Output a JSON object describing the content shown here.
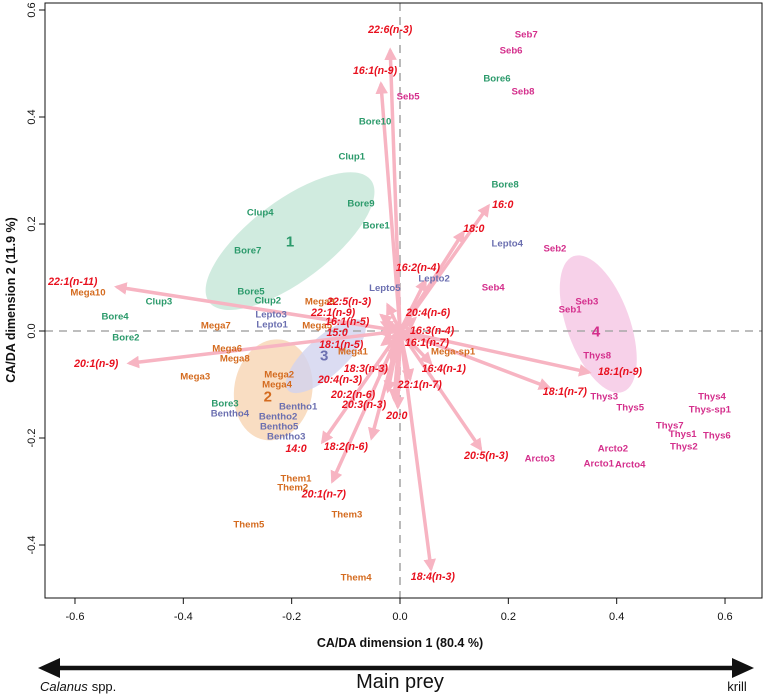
{
  "chart_data": {
    "type": "scatter",
    "title": "",
    "xlabel": "CA/DA dimension 1 (80.4 %)",
    "ylabel": "CA/DA dimension 2 (11.9 %)",
    "xlim": [
      -0.655,
      0.67
    ],
    "ylim": [
      -0.5,
      0.613
    ],
    "xticks": [
      -0.6,
      -0.4,
      -0.2,
      0,
      0.2,
      0.4,
      0.6
    ],
    "xtick_labels": [
      "-0.6",
      "-0.4",
      "-0.2",
      "0.0",
      "0.2",
      "0.4",
      "0.6"
    ],
    "yticks": [
      -0.4,
      -0.2,
      0,
      0.2,
      0.4,
      0.6
    ],
    "ytick_labels": [
      "-0.4",
      "-0.2",
      "0.0",
      "0.2",
      "0.4",
      "0.6"
    ],
    "reference_lines": {
      "x": 0,
      "y": 0,
      "style": "dashed",
      "color": "#a8a8a8"
    },
    "groups": [
      {
        "label": "1",
        "color": "#2b9a6b",
        "fill": "#c4e6d7",
        "centroid": [
          -0.203,
          0.166
        ],
        "ellipse": {
          "center": [
            -0.203,
            0.168
          ],
          "semi_axes": [
            0.187,
            0.075
          ],
          "rotation_deg": -37
        },
        "points": [
          {
            "label": "Clup1",
            "x": -0.089,
            "y": 0.325
          },
          {
            "label": "Bore10",
            "x": -0.046,
            "y": 0.391
          },
          {
            "label": "Bore6",
            "x": 0.179,
            "y": 0.471
          },
          {
            "label": "Bore8",
            "x": 0.194,
            "y": 0.273
          },
          {
            "label": "Clup4",
            "x": -0.258,
            "y": 0.221
          },
          {
            "label": "Bore9",
            "x": -0.072,
            "y": 0.237
          },
          {
            "label": "Bore1",
            "x": -0.044,
            "y": 0.196
          },
          {
            "label": "Bore7",
            "x": -0.281,
            "y": 0.15
          },
          {
            "label": "Bore5",
            "x": -0.275,
            "y": 0.073
          },
          {
            "label": "Clup2",
            "x": -0.244,
            "y": 0.056
          },
          {
            "label": "Clup3",
            "x": -0.445,
            "y": 0.054
          },
          {
            "label": "Bore4",
            "x": -0.526,
            "y": 0.026
          },
          {
            "label": "Bore2",
            "x": -0.506,
            "y": -0.013
          },
          {
            "label": "Bore3",
            "x": -0.323,
            "y": -0.136
          }
        ]
      },
      {
        "label": "2",
        "color": "#d46b1f",
        "fill": "#f8d5b3",
        "centroid": [
          -0.244,
          -0.123
        ],
        "ellipse": {
          "center": [
            -0.234,
            -0.11
          ],
          "semi_axes": [
            0.072,
            0.095
          ],
          "rotation_deg": 10
        },
        "points": [
          {
            "label": "Mega10",
            "x": -0.576,
            "y": 0.071
          },
          {
            "label": "Mega9",
            "x": -0.148,
            "y": 0.054
          },
          {
            "label": "Mega7",
            "x": -0.34,
            "y": 0.009
          },
          {
            "label": "Mega5",
            "x": -0.153,
            "y": 0.009
          },
          {
            "label": "Mega6",
            "x": -0.319,
            "y": -0.034
          },
          {
            "label": "Mega1",
            "x": -0.087,
            "y": -0.039
          },
          {
            "label": "Mega-sp1",
            "x": 0.098,
            "y": -0.039
          },
          {
            "label": "Mega8",
            "x": -0.305,
            "y": -0.052
          },
          {
            "label": "Mega2",
            "x": -0.223,
            "y": -0.082
          },
          {
            "label": "Mega3",
            "x": -0.378,
            "y": -0.086
          },
          {
            "label": "Mega4",
            "x": -0.227,
            "y": -0.101
          },
          {
            "label": "Them1",
            "x": -0.192,
            "y": -0.277
          },
          {
            "label": "Them2",
            "x": -0.198,
            "y": -0.293
          },
          {
            "label": "Them3",
            "x": -0.098,
            "y": -0.344
          },
          {
            "label": "Them5",
            "x": -0.279,
            "y": -0.363
          },
          {
            "label": "Them4",
            "x": -0.081,
            "y": -0.462
          }
        ]
      },
      {
        "label": "3",
        "color": "#6b6fb0",
        "fill": "#d2d3ef",
        "centroid": [
          -0.14,
          -0.047
        ],
        "ellipse": {
          "center": [
            -0.137,
            -0.047
          ],
          "semi_axes": [
            0.094,
            0.036
          ],
          "rotation_deg": -42
        },
        "points": [
          {
            "label": "Lepto4",
            "x": 0.198,
            "y": 0.163
          },
          {
            "label": "Lepto2",
            "x": 0.063,
            "y": 0.097
          },
          {
            "label": "Lepto5",
            "x": -0.028,
            "y": 0.079
          },
          {
            "label": "Lepto3",
            "x": -0.238,
            "y": 0.03
          },
          {
            "label": "Lepto1",
            "x": -0.236,
            "y": 0.011
          },
          {
            "label": "Bentho1",
            "x": -0.188,
            "y": -0.142
          },
          {
            "label": "Bentho4",
            "x": -0.314,
            "y": -0.155
          },
          {
            "label": "Bentho2",
            "x": -0.225,
            "y": -0.161
          },
          {
            "label": "Bentho5",
            "x": -0.223,
            "y": -0.179
          },
          {
            "label": "Bentho3",
            "x": -0.21,
            "y": -0.198
          }
        ]
      },
      {
        "label": "4",
        "color": "#d42f8c",
        "fill": "#f5c6e4",
        "centroid": [
          0.362,
          -0.002
        ],
        "ellipse": {
          "center": [
            0.366,
            0.013
          ],
          "semi_axes": [
            0.058,
            0.135
          ],
          "rotation_deg": -20
        },
        "points": [
          {
            "label": "Seb7",
            "x": 0.233,
            "y": 0.553
          },
          {
            "label": "Seb6",
            "x": 0.205,
            "y": 0.523
          },
          {
            "label": "Seb8",
            "x": 0.227,
            "y": 0.447
          },
          {
            "label": "Seb5",
            "x": 0.015,
            "y": 0.437
          },
          {
            "label": "Seb2",
            "x": 0.286,
            "y": 0.153
          },
          {
            "label": "Seb4",
            "x": 0.172,
            "y": 0.08
          },
          {
            "label": "Seb3",
            "x": 0.345,
            "y": 0.054
          },
          {
            "label": "Seb1",
            "x": 0.314,
            "y": 0.039
          },
          {
            "label": "Thys8",
            "x": 0.364,
            "y": -0.047
          },
          {
            "label": "Thys3",
            "x": 0.377,
            "y": -0.123
          },
          {
            "label": "Thys4",
            "x": 0.576,
            "y": -0.123
          },
          {
            "label": "Thys5",
            "x": 0.425,
            "y": -0.144
          },
          {
            "label": "Thys-sp1",
            "x": 0.572,
            "y": -0.148
          },
          {
            "label": "Thys7",
            "x": 0.498,
            "y": -0.178
          },
          {
            "label": "Thys1",
            "x": 0.522,
            "y": -0.193
          },
          {
            "label": "Thys6",
            "x": 0.585,
            "y": -0.196
          },
          {
            "label": "Thys2",
            "x": 0.524,
            "y": -0.217
          },
          {
            "label": "Arcto2",
            "x": 0.393,
            "y": -0.221
          },
          {
            "label": "Arcto3",
            "x": 0.258,
            "y": -0.239
          },
          {
            "label": "Arcto1",
            "x": 0.367,
            "y": -0.249
          },
          {
            "label": "Arcto4",
            "x": 0.425,
            "y": -0.25
          }
        ]
      }
    ],
    "vectors": {
      "color": "#f7b4c2",
      "label_color": "#e8101e",
      "items": [
        {
          "label": "22:6(n-3)",
          "x": -0.018,
          "y": 0.523
        },
        {
          "label": "16:1(n-9)",
          "x": -0.035,
          "y": 0.46
        },
        {
          "label": "16:0",
          "x": 0.162,
          "y": 0.232
        },
        {
          "label": "18:0",
          "x": 0.116,
          "y": 0.183
        },
        {
          "label": "16:2(n-4)",
          "x": 0.046,
          "y": 0.092
        },
        {
          "label": "22:1(n-11)",
          "x": -0.521,
          "y": 0.082
        },
        {
          "label": "20:1(n-9)",
          "x": -0.498,
          "y": -0.06
        },
        {
          "label": "22:5(n-3)",
          "x": -0.022,
          "y": 0.047
        },
        {
          "label": "22:1(n-9)",
          "x": -0.033,
          "y": 0.028
        },
        {
          "label": "16:1(n-5)",
          "x": -0.031,
          "y": 0.015
        },
        {
          "label": "20:4(n-6)",
          "x": 0.026,
          "y": 0.022
        },
        {
          "label": "15:0",
          "x": -0.033,
          "y": -0.004
        },
        {
          "label": "16:3(n-4)",
          "x": 0.026,
          "y": -0.002
        },
        {
          "label": "16:1(n-7)",
          "x": 0.022,
          "y": -0.017
        },
        {
          "label": "18:1(n-5)",
          "x": -0.031,
          "y": -0.024
        },
        {
          "label": "18:3(n-3)",
          "x": -0.015,
          "y": -0.054
        },
        {
          "label": "16:4(n-1)",
          "x": 0.055,
          "y": -0.058
        },
        {
          "label": "20:4(n-3)",
          "x": -0.037,
          "y": -0.082
        },
        {
          "label": "22:1(n-7)",
          "x": 0.018,
          "y": -0.088
        },
        {
          "label": "20:2(n-6)",
          "x": -0.022,
          "y": -0.11
        },
        {
          "label": "20:3(n-3)",
          "x": -0.011,
          "y": -0.125
        },
        {
          "label": "20:0",
          "x": -0.004,
          "y": -0.14
        },
        {
          "label": "14:0",
          "x": -0.142,
          "y": -0.206
        },
        {
          "label": "18:2(n-6)",
          "x": -0.052,
          "y": -0.198
        },
        {
          "label": "20:5(n-3)",
          "x": 0.148,
          "y": -0.219
        },
        {
          "label": "20:1(n-7)",
          "x": -0.124,
          "y": -0.279
        },
        {
          "label": "18:4(n-3)",
          "x": 0.057,
          "y": -0.443
        },
        {
          "label": "18:1(n-9)",
          "x": 0.347,
          "y": -0.077
        },
        {
          "label": "18:1(n-7)",
          "x": 0.273,
          "y": -0.105
        }
      ]
    }
  },
  "annotation": {
    "gradient_label": "Main prey",
    "left_label_italic": "Calanus",
    "left_label_suffix": "spp.",
    "right_label": "krill"
  }
}
